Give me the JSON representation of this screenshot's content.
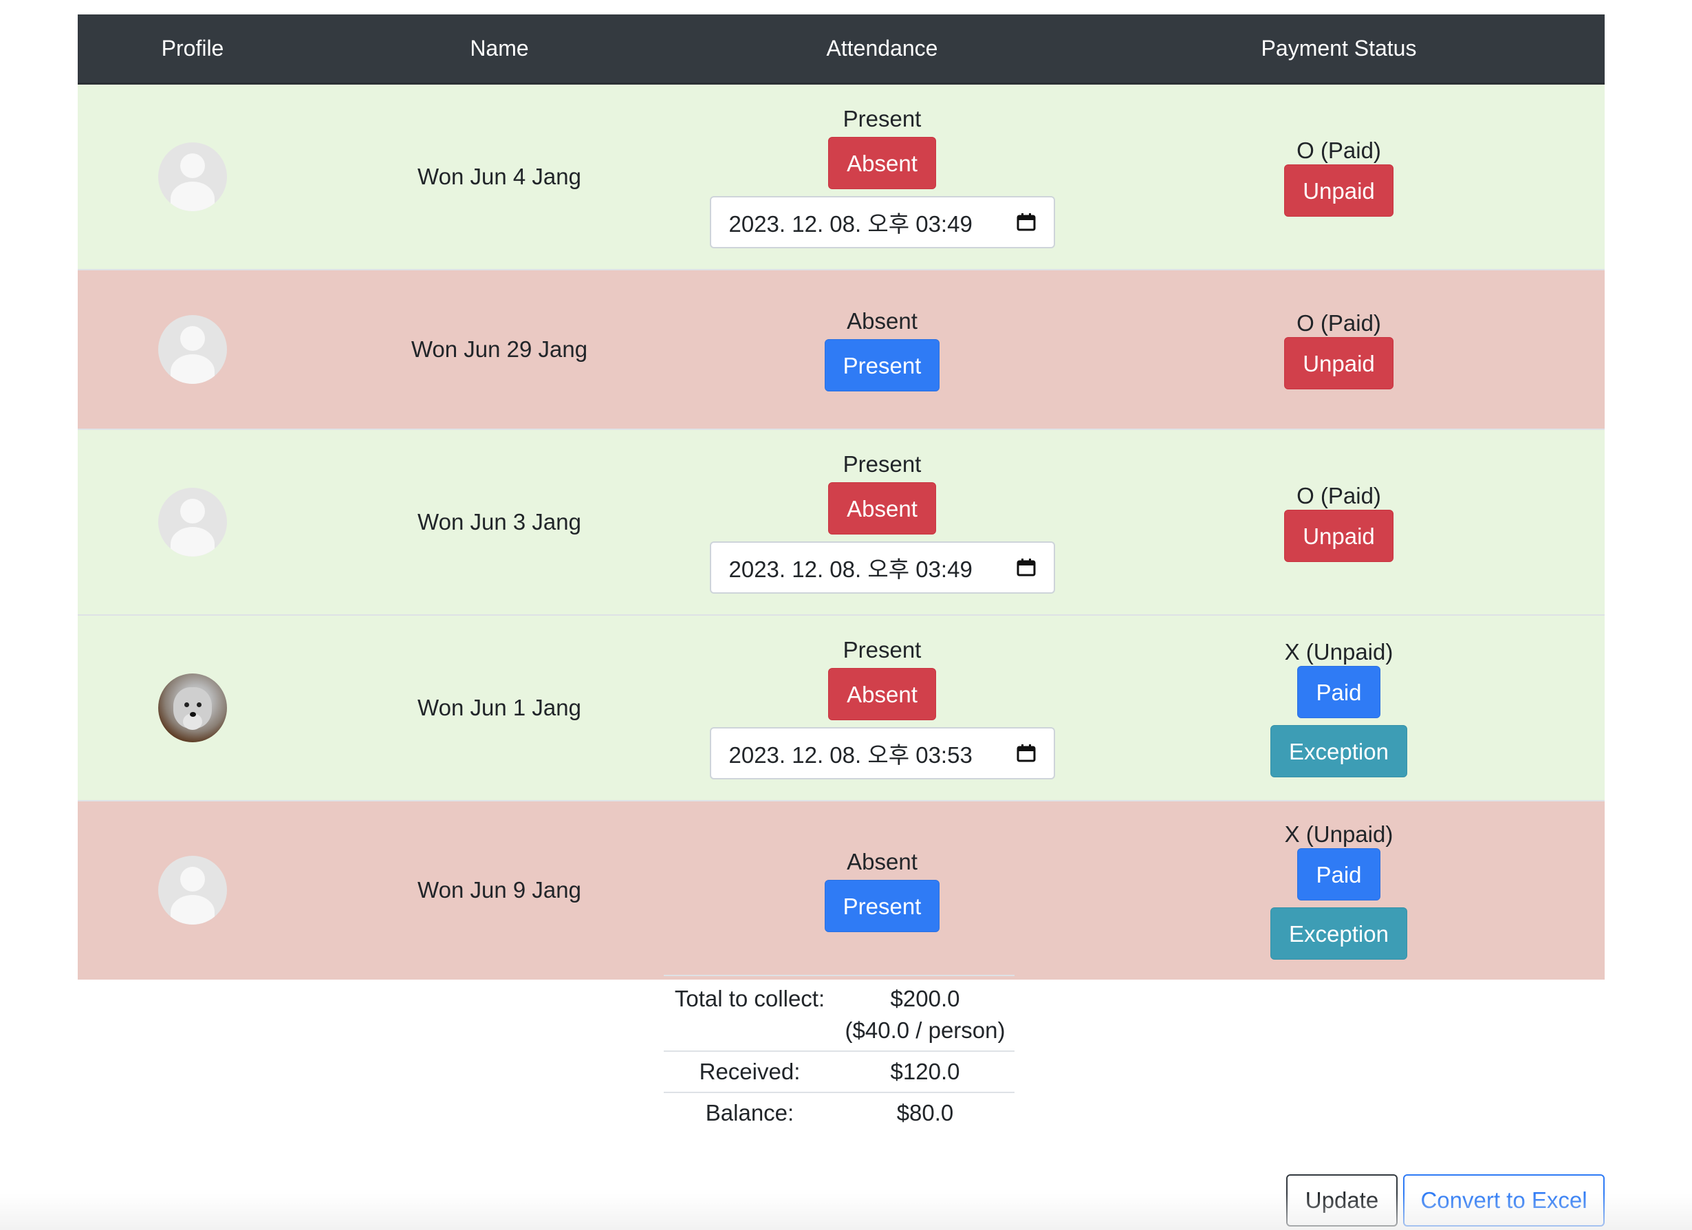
{
  "table": {
    "headers": [
      "Profile",
      "Name",
      "Attendance",
      "Payment Status"
    ],
    "rows": [
      {
        "name": "Won Jun 4 Jang",
        "attendance_status": "Present",
        "attendance_button": "Absent",
        "datetime": "2023. 12. 08. 오후 03:49",
        "payment_status": "O (Paid)",
        "payment_button": "Unpaid"
      },
      {
        "name": "Won Jun 29 Jang",
        "attendance_status": "Absent",
        "attendance_button": "Present",
        "payment_status": "O (Paid)",
        "payment_button": "Unpaid"
      },
      {
        "name": "Won Jun 3 Jang",
        "attendance_status": "Present",
        "attendance_button": "Absent",
        "datetime": "2023. 12. 08. 오후 03:49",
        "payment_status": "O (Paid)",
        "payment_button": "Unpaid"
      },
      {
        "name": "Won Jun 1 Jang",
        "attendance_status": "Present",
        "attendance_button": "Absent",
        "datetime": "2023. 12. 08. 오후 03:53",
        "payment_status": "X (Unpaid)",
        "payment_button": "Paid",
        "exception_button": "Exception"
      },
      {
        "name": "Won Jun 9 Jang",
        "attendance_status": "Absent",
        "attendance_button": "Present",
        "payment_status": "X (Unpaid)",
        "payment_button": "Paid",
        "exception_button": "Exception"
      }
    ]
  },
  "summary": {
    "total_label": "Total to collect:",
    "total_value": "$200.0",
    "per_person": "($40.0 / person)",
    "received_label": "Received:",
    "received_value": "$120.0",
    "balance_label": "Balance:",
    "balance_value": "$80.0"
  },
  "actions": {
    "update": "Update",
    "convert": "Convert to Excel"
  },
  "colors": {
    "header_bg": "#343a40",
    "present_row": "#e8f5df",
    "absent_row": "#eac9c3",
    "danger": "#d1404b",
    "primary": "#2f7bf5",
    "info": "#3d9db5"
  },
  "icons": [
    "default-avatar-icon",
    "dog-photo-avatar",
    "calendar-icon"
  ]
}
